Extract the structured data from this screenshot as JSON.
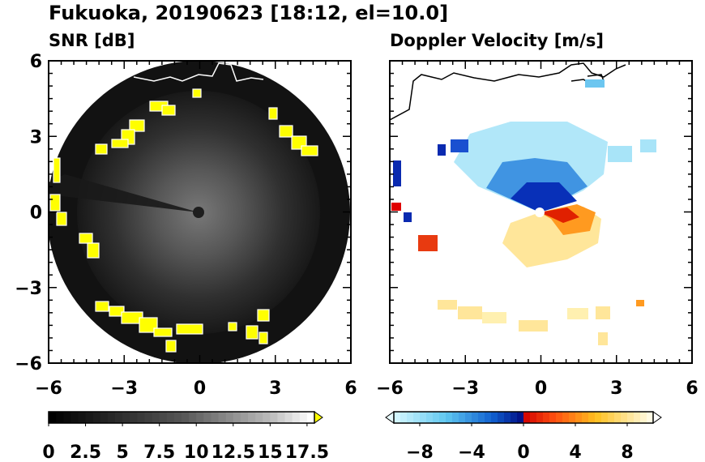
{
  "title": "Fukuoka, 20190623 [18:12, el=10.0]",
  "chart_data": [
    {
      "type": "heatmap",
      "title": "SNR [dB]",
      "xlim": [
        -6,
        6
      ],
      "ylim": [
        -6,
        6
      ],
      "xticks": [
        "−6",
        "−3",
        "0",
        "3",
        "6"
      ],
      "yticks": [
        "6",
        "3",
        "0",
        "−3",
        "−6"
      ],
      "colorbar": {
        "ticks": [
          "0",
          "2.5",
          "5",
          "7.5",
          "10",
          "12.5",
          "15",
          "17.5"
        ],
        "range": [
          0,
          18
        ],
        "extend": "max",
        "colormap": "gray-to-yellow"
      },
      "radar_range": 6
    },
    {
      "type": "heatmap",
      "title": "Doppler Velocity [m/s]",
      "xlim": [
        -6,
        6
      ],
      "ylim": [
        -6,
        6
      ],
      "xticks": [
        "−6",
        "−3",
        "0",
        "3",
        "6"
      ],
      "yticks": [],
      "colorbar": {
        "ticks": [
          "−8",
          "−4",
          "0",
          "4",
          "8"
        ],
        "range": [
          -10,
          10
        ],
        "extend": "both",
        "colormap": "cyan-blue-red-yellow-white"
      }
    }
  ],
  "colors": {
    "background_disk": "#141414",
    "echo_yellow": "#ffff00",
    "neg_far": "#c8f4ff",
    "neg_mid": "#3aa0e8",
    "neg_near": "#0010a0",
    "pos_near": "#e00000",
    "pos_mid": "#ff9a00",
    "pos_far": "#fffbe0"
  }
}
